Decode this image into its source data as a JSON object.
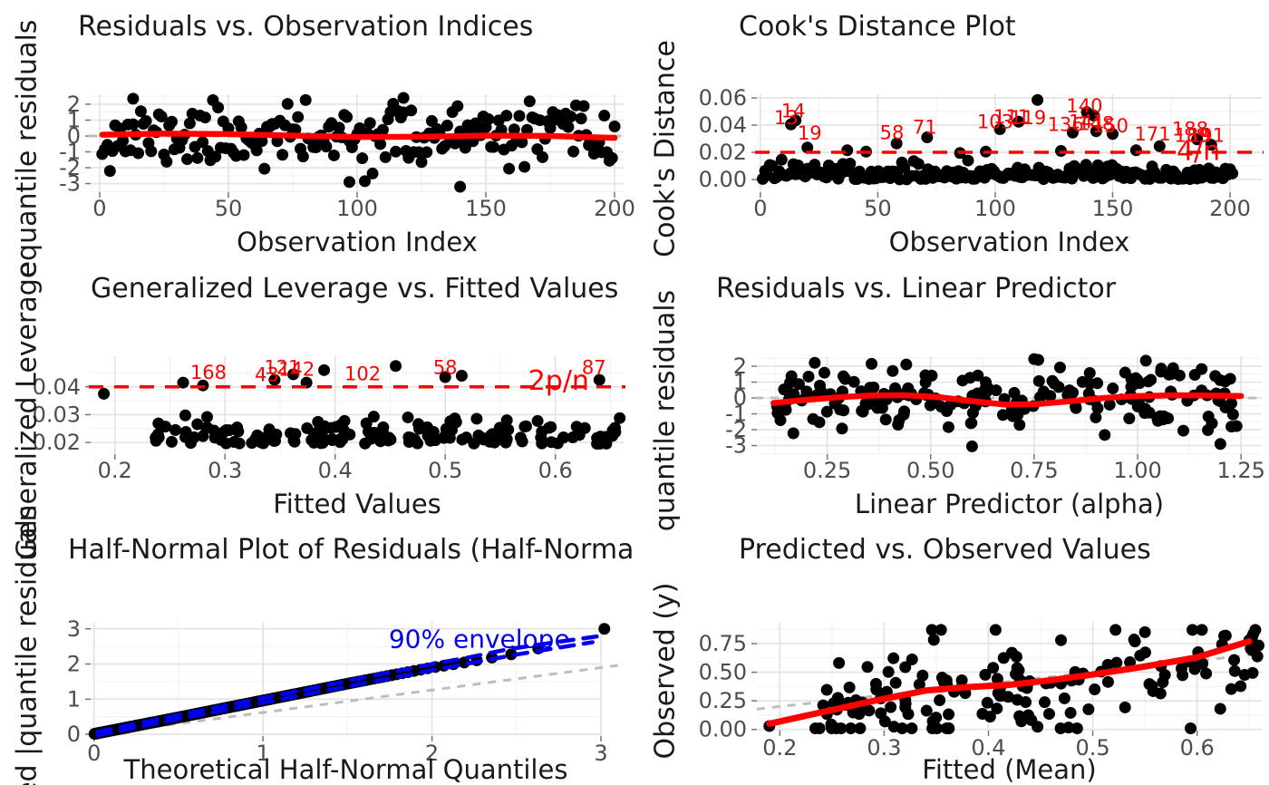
{
  "figure_title": "Beta regression diagnostic plots (2x3 grid)",
  "colors": {
    "accent_red": "#ff0000",
    "accent_blue": "#0000ee",
    "reference_gray": "#bdbdbd",
    "grid_major": "#e2e2e2",
    "grid_minor": "#f1f1f1",
    "point_black": "#000000",
    "tick_text": "#4d4d4d",
    "title_text": "#1a1a1a",
    "background": "#ffffff"
  },
  "chart_data": [
    {
      "type": "scatter",
      "title": "Residuals vs. Observation Indices",
      "xlabel": "Observation Index",
      "ylabel": "equantile residuals",
      "xlim": [
        -3.5,
        203.5
      ],
      "ylim": [
        -3.54,
        2.63
      ],
      "xticks": [
        0,
        50,
        100,
        150,
        200
      ],
      "xtick_labels": [
        "0",
        "50",
        "100",
        "150",
        "200"
      ],
      "yticks": [
        2,
        1,
        0,
        -1,
        -2,
        -3
      ],
      "ytick_labels": [
        "2",
        "1",
        "0",
        "-1",
        "-2",
        "-3"
      ],
      "xminor": [
        25,
        75,
        125,
        175
      ],
      "yminor": [
        2.5,
        1.5,
        0.5,
        -0.5,
        -1.5,
        -2.5,
        -3.5
      ],
      "grid": true,
      "n_points": 200,
      "gen": {
        "kind": "resid",
        "seed": 11,
        "x0": 1,
        "x1": 200,
        "ymin": -3.25,
        "ymax": 2.3
      },
      "extra_points": [
        [
          13,
          2.35
        ],
        [
          118,
          2.4
        ],
        [
          140,
          -3.2
        ],
        [
          97,
          -2.9
        ]
      ],
      "ref_lines": [
        {
          "kind": "h",
          "y": 0,
          "color": "reference_gray",
          "dash": "9,8",
          "width": 3
        }
      ],
      "smooth": {
        "color": "accent_red",
        "width": 6.5,
        "pts": [
          [
            1,
            0.08
          ],
          [
            25,
            0.15
          ],
          [
            50,
            0.12
          ],
          [
            75,
            0.02
          ],
          [
            100,
            -0.06
          ],
          [
            125,
            -0.05
          ],
          [
            150,
            0.02
          ],
          [
            175,
            0.0
          ],
          [
            200,
            -0.12
          ]
        ]
      }
    },
    {
      "type": "scatter",
      "title": "Cook's Distance Plot",
      "xlabel": "Observation Index",
      "ylabel": "Cook's Distance",
      "xlim": [
        -1.5,
        213.5
      ],
      "ylim": [
        -0.0093,
        0.0627
      ],
      "xticks": [
        0,
        50,
        100,
        150,
        200
      ],
      "xtick_labels": [
        "0",
        "50",
        "100",
        "150",
        "200"
      ],
      "yticks": [
        0.06,
        0.04,
        0.02,
        0.0
      ],
      "ytick_labels": [
        "0.06",
        "0.04",
        "0.02",
        "0.00"
      ],
      "xminor": [
        25,
        75,
        125,
        175
      ],
      "yminor": [
        0.01,
        0.03,
        0.05
      ],
      "grid": true,
      "n_points": 200,
      "gen": {
        "kind": "cook",
        "seed": 22,
        "scale": 0.0055,
        "ymax": 0.0175
      },
      "extra_points": [
        [
          13,
          0.0405
        ],
        [
          15,
          0.0435
        ],
        [
          20,
          0.0235
        ],
        [
          58,
          0.0265
        ],
        [
          71,
          0.031
        ],
        [
          102,
          0.037
        ],
        [
          110,
          0.0425
        ],
        [
          118,
          0.0585
        ],
        [
          139,
          0.0495
        ],
        [
          142,
          0.047
        ],
        [
          133,
          0.0345
        ],
        [
          143,
          0.0355
        ],
        [
          150,
          0.0335
        ],
        [
          170,
          0.0245
        ],
        [
          186,
          0.0295
        ],
        [
          192,
          0.0255
        ],
        [
          160,
          0.0215
        ],
        [
          128,
          0.021
        ],
        [
          96,
          0.0205
        ],
        [
          45,
          0.0205
        ],
        [
          37,
          0.0215
        ],
        [
          85,
          0.0195
        ]
      ],
      "ref_lines": [
        {
          "kind": "h",
          "y": 0.02,
          "color": "accent_red",
          "dash": "16,12",
          "width": 3.5
        }
      ],
      "point_labels": [
        {
          "text": "13",
          "x": 11,
          "y": 0.0455
        },
        {
          "text": "14",
          "x": 14,
          "y": 0.0505
        },
        {
          "text": "19",
          "x": 21,
          "y": 0.034
        },
        {
          "text": "58",
          "x": 56,
          "y": 0.0345
        },
        {
          "text": "71",
          "x": 70,
          "y": 0.0385
        },
        {
          "text": "103",
          "x": 100,
          "y": 0.0425
        },
        {
          "text": "111",
          "x": 107,
          "y": 0.046
        },
        {
          "text": "119",
          "x": 114,
          "y": 0.0455
        },
        {
          "text": "140",
          "x": 138,
          "y": 0.054
        },
        {
          "text": "136",
          "x": 130,
          "y": 0.0405
        },
        {
          "text": "141",
          "x": 139,
          "y": 0.0425
        },
        {
          "text": "148",
          "x": 143,
          "y": 0.041
        },
        {
          "text": "150",
          "x": 149,
          "y": 0.0395
        },
        {
          "text": "171",
          "x": 167,
          "y": 0.0335
        },
        {
          "text": "188",
          "x": 183,
          "y": 0.037
        },
        {
          "text": "189",
          "x": 184,
          "y": 0.0325
        },
        {
          "text": "191",
          "x": 190,
          "y": 0.0325
        }
      ],
      "annotations": [
        {
          "text": "4/n",
          "x": 186.5,
          "y": 0.0205,
          "size": 30,
          "color": "accent_red"
        }
      ]
    },
    {
      "type": "scatter",
      "title": "Generalized Leverage vs. Fitted Values",
      "xlabel": "Fitted Values",
      "ylabel": "Generalized Leverage",
      "xlim": [
        0.178,
        0.662
      ],
      "ylim": [
        0.0158,
        0.051
      ],
      "xticks": [
        0.2,
        0.3,
        0.4,
        0.5,
        0.6
      ],
      "xtick_labels": [
        "0.2",
        "0.3",
        "0.4",
        "0.5",
        "0.6"
      ],
      "yticks": [
        0.04,
        0.03,
        0.02
      ],
      "ytick_labels": [
        "0.04",
        "0.03",
        "0.02"
      ],
      "xminor": [
        0.25,
        0.35,
        0.45,
        0.55,
        0.65
      ],
      "yminor": [
        0.045,
        0.035,
        0.025
      ],
      "grid": true,
      "n_points": 165,
      "gen": {
        "kind": "lev",
        "seed": 33,
        "x0": 0.23,
        "x1": 0.66,
        "base": 0.0195,
        "scale": 0.0042,
        "ymax": 0.0415
      },
      "extra_points": [
        [
          0.19,
          0.0375
        ],
        [
          0.28,
          0.0405
        ],
        [
          0.345,
          0.0425
        ],
        [
          0.362,
          0.0445
        ],
        [
          0.374,
          0.0415
        ],
        [
          0.39,
          0.046
        ],
        [
          0.455,
          0.0475
        ],
        [
          0.5,
          0.0435
        ],
        [
          0.515,
          0.044
        ],
        [
          0.64,
          0.0425
        ],
        [
          0.262,
          0.0415
        ]
      ],
      "ref_lines": [
        {
          "kind": "h",
          "y": 0.04,
          "color": "accent_red",
          "dash": "16,12",
          "width": 3.5
        }
      ],
      "point_labels": [
        {
          "text": "168",
          "x": 0.285,
          "y": 0.0452
        },
        {
          "text": "43",
          "x": 0.338,
          "y": 0.0443
        },
        {
          "text": "121",
          "x": 0.352,
          "y": 0.047
        },
        {
          "text": "142",
          "x": 0.365,
          "y": 0.0462
        },
        {
          "text": "102",
          "x": 0.425,
          "y": 0.0447
        },
        {
          "text": "58",
          "x": 0.5,
          "y": 0.047
        },
        {
          "text": "87",
          "x": 0.635,
          "y": 0.047
        }
      ],
      "annotations": [
        {
          "text": "2p/n",
          "x": 0.603,
          "y": 0.0418,
          "size": 30,
          "color": "accent_red"
        }
      ]
    },
    {
      "type": "scatter",
      "title": "Residuals vs. Linear Predictor",
      "xlabel": "Linear Predictor (alpha)",
      "ylabel": "quantile residuals",
      "xlim": [
        0.08,
        1.3
      ],
      "ylim": [
        -3.54,
        2.63
      ],
      "xticks": [
        0.25,
        0.5,
        0.75,
        1.0,
        1.25
      ],
      "xtick_labels": [
        "0.25",
        "0.50",
        "0.75",
        "1.00",
        "1.25"
      ],
      "yticks": [
        2,
        1,
        0,
        -1,
        -2,
        -3
      ],
      "ytick_labels": [
        "2",
        "1",
        "0",
        "-1",
        "-2",
        "-3"
      ],
      "xminor": [
        0.125,
        0.375,
        0.625,
        0.875,
        1.125
      ],
      "yminor": [
        2.5,
        1.5,
        0.5,
        -0.5,
        -1.5,
        -2.5,
        -3.5
      ],
      "grid": true,
      "n_points": 190,
      "gen": {
        "kind": "resid",
        "seed": 44,
        "x0": 0.12,
        "x1": 1.24,
        "ymin": -3.05,
        "ymax": 2.4
      },
      "extra_points": [
        [
          0.6,
          -3.05
        ],
        [
          0.76,
          2.4
        ],
        [
          1.2,
          -2.9
        ],
        [
          1.02,
          2.35
        ],
        [
          0.75,
          2.45
        ]
      ],
      "ref_lines": [
        {
          "kind": "h",
          "y": 0,
          "color": "reference_gray",
          "dash": "9,8",
          "width": 3
        }
      ],
      "smooth": {
        "color": "accent_red",
        "width": 6.5,
        "pts": [
          [
            0.12,
            -0.32
          ],
          [
            0.2,
            -0.12
          ],
          [
            0.28,
            0.05
          ],
          [
            0.36,
            0.16
          ],
          [
            0.44,
            0.17
          ],
          [
            0.52,
            0.05
          ],
          [
            0.6,
            -0.2
          ],
          [
            0.68,
            -0.42
          ],
          [
            0.76,
            -0.38
          ],
          [
            0.84,
            -0.2
          ],
          [
            0.92,
            0.0
          ],
          [
            1.0,
            0.12
          ],
          [
            1.1,
            0.17
          ],
          [
            1.18,
            0.15
          ],
          [
            1.25,
            0.12
          ]
        ]
      }
    },
    {
      "type": "scatter",
      "title": "Half-Normal Plot of Residuals (Half-Normal Quantiles)",
      "xlabel": "Theoretical Half-Normal Quantiles",
      "ylabel": "red |quantile residuals",
      "xlim": [
        -0.02,
        3.0
      ],
      "ylim": [
        -0.05,
        3.2
      ],
      "xticks": [
        0,
        1,
        2,
        3
      ],
      "xtick_labels": [
        "0",
        "1",
        "2",
        "3"
      ],
      "yticks": [
        3,
        2,
        1,
        0
      ],
      "ytick_labels": [
        "3",
        "2",
        "1",
        "0"
      ],
      "xminor": [
        0.5,
        1.5,
        2.5
      ],
      "yminor": [
        2.5,
        1.5,
        0.5
      ],
      "grid": true,
      "n_points": 200,
      "gen": {
        "kind": "hnp",
        "seed": 55,
        "anchors": [
          [
            0,
            0.01
          ],
          [
            0.5,
            0.48
          ],
          [
            1,
            0.96
          ],
          [
            1.5,
            1.44
          ],
          [
            2,
            1.9
          ],
          [
            2.2,
            2.05
          ],
          [
            2.35,
            2.18
          ],
          [
            2.5,
            2.3
          ],
          [
            2.7,
            2.52
          ],
          [
            2.85,
            2.6
          ],
          [
            3.02,
            3.0
          ]
        ]
      },
      "extra_points": [
        [
          3.02,
          3.0
        ]
      ],
      "ref_lines": [
        {
          "kind": "seg",
          "color": "reference_gray",
          "dash": "9,8",
          "width": 3,
          "pts": [
            [
              -0.02,
              -0.03
            ],
            [
              3.1,
              1.96
            ]
          ]
        }
      ],
      "envelopes": [
        {
          "color": "accent_blue",
          "dash": "15,11",
          "width": 4.5,
          "pts": [
            [
              0.02,
              0.07
            ],
            [
              0.5,
              0.55
            ],
            [
              1,
              1.03
            ],
            [
              1.5,
              1.52
            ],
            [
              2,
              2.0
            ],
            [
              2.2,
              2.17
            ],
            [
              2.45,
              2.42
            ],
            [
              2.7,
              2.6
            ],
            [
              3.0,
              2.8
            ]
          ]
        },
        {
          "color": "accent_blue",
          "dash": "15,11",
          "width": 4.5,
          "pts": [
            [
              0.02,
              -0.03
            ],
            [
              0.5,
              0.44
            ],
            [
              1,
              0.9
            ],
            [
              1.5,
              1.36
            ],
            [
              2,
              1.82
            ],
            [
              2.2,
              2.0
            ],
            [
              2.5,
              2.27
            ],
            [
              2.95,
              2.62
            ]
          ]
        }
      ],
      "annotations": [
        {
          "text": "90% envelope",
          "x": 2.28,
          "y": 2.7,
          "size": 28,
          "color": "accent_blue"
        }
      ]
    },
    {
      "type": "scatter",
      "title": "Predicted vs. Observed Values",
      "xlabel": "Fitted (Mean)",
      "ylabel": "Observed (y)",
      "xlim": [
        0.178,
        0.662
      ],
      "ylim": [
        -0.01,
        0.94
      ],
      "xticks": [
        0.2,
        0.3,
        0.4,
        0.5,
        0.6
      ],
      "xtick_labels": [
        "0.2",
        "0.3",
        "0.4",
        "0.5",
        "0.6"
      ],
      "yticks": [
        0.75,
        0.5,
        0.25,
        0.0
      ],
      "ytick_labels": [
        "0.75",
        "0.50",
        "0.25",
        "0.00"
      ],
      "xminor": [
        0.25,
        0.35,
        0.45,
        0.55,
        0.65
      ],
      "yminor": [
        0.875,
        0.625,
        0.375,
        0.125
      ],
      "grid": true,
      "n_points": 165,
      "gen": {
        "kind": "pvo",
        "seed": 66,
        "x0": 0.23,
        "x1": 0.66,
        "slope": 1.05,
        "intercept": 0.14,
        "sd": 0.21,
        "ymin": 0.01,
        "ymax": 0.87
      },
      "extra_points": [
        [
          0.19,
          0.03
        ],
        [
          0.65,
          0.78
        ],
        [
          0.55,
          0.85
        ]
      ],
      "ref_lines": [
        {
          "kind": "seg",
          "color": "reference_gray",
          "dash": "9,8",
          "width": 3,
          "pts": [
            [
              0.178,
              0.178
            ],
            [
              0.662,
              0.662
            ]
          ]
        }
      ],
      "smooth": {
        "color": "accent_red",
        "width": 7,
        "pts": [
          [
            0.19,
            0.05
          ],
          [
            0.24,
            0.15
          ],
          [
            0.29,
            0.25
          ],
          [
            0.34,
            0.34
          ],
          [
            0.38,
            0.37
          ],
          [
            0.42,
            0.39
          ],
          [
            0.46,
            0.43
          ],
          [
            0.5,
            0.48
          ],
          [
            0.55,
            0.55
          ],
          [
            0.6,
            0.63
          ],
          [
            0.65,
            0.77
          ]
        ]
      }
    }
  ]
}
